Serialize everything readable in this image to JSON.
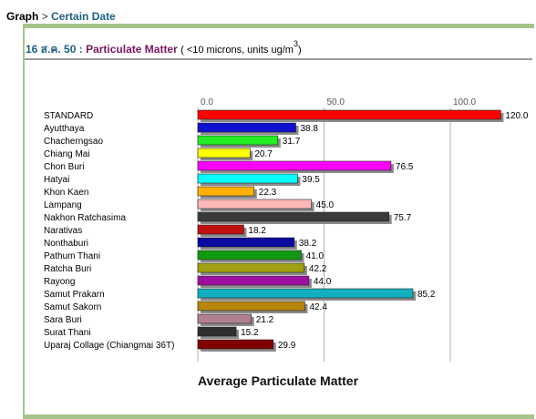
{
  "breadcrumb": {
    "root": "Graph",
    "separator": ">",
    "current": "Certain Date"
  },
  "heading": {
    "date": "16 ส.ค. 50",
    "separator": ":",
    "title": "Particulate Matter",
    "units_prefix": "( <10 microns, units ug/m",
    "units_superscript": "3",
    "units_suffix": ")"
  },
  "colors": {
    "accent_border": "#a4c48a",
    "breadcrumb_link": "#1f5f83",
    "title": "#7a1762",
    "bar_shadow": "#8c8c8c",
    "gridline": "#b0b0b0"
  },
  "chart_data": {
    "type": "bar",
    "orientation": "horizontal",
    "title": "Average Particulate Matter",
    "xlim": [
      0,
      120
    ],
    "x_ticks": [
      0,
      50,
      100
    ],
    "x_tick_labels": [
      "0.0",
      "50.0",
      "100.0"
    ],
    "grid": true,
    "categories": [
      "STANDARD",
      "Ayutthaya",
      "Chacherngsao",
      "Chiang Mai",
      "Chon Buri",
      "Hatyai",
      "Khon Kaen",
      "Lampang",
      "Nakhon Ratchasima",
      "Narativas",
      "Nonthaburi",
      "Pathum Thani",
      "Ratcha Buri",
      "Rayong",
      "Samut Prakarn",
      "Samut Sakorn",
      "Sara Buri",
      "Surat Thani",
      "Uparaj Collage (Chiangmai 36T)"
    ],
    "values": [
      120.0,
      38.8,
      31.7,
      20.7,
      76.5,
      39.5,
      22.3,
      45.0,
      75.7,
      18.2,
      38.2,
      41.0,
      42.2,
      44.0,
      85.2,
      42.4,
      21.2,
      15.2,
      29.9
    ],
    "value_labels": [
      "120.0",
      "38.8",
      "31.7",
      "20.7",
      "76.5",
      "39.5",
      "22.3",
      "45.0",
      "75.7",
      "18.2",
      "38.2",
      "41.0",
      "42.2",
      "44.0",
      "85.2",
      "42.4",
      "21.2",
      "15.2",
      "29.9"
    ],
    "bar_colors": [
      "#ff0000",
      "#1010d0",
      "#22ee22",
      "#ffff00",
      "#ff00ff",
      "#00ffff",
      "#ffb000",
      "#ffb8b8",
      "#3a3a3a",
      "#c01010",
      "#0a0aa0",
      "#119a11",
      "#a0a010",
      "#a010a0",
      "#10b0c0",
      "#b8860b",
      "#b08090",
      "#303030",
      "#800000"
    ]
  }
}
